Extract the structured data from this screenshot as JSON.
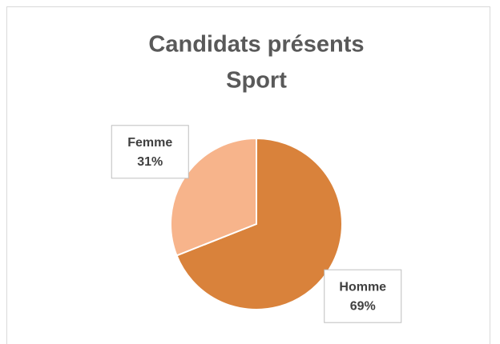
{
  "chart_data": {
    "type": "pie",
    "title": [
      "Candidats présents",
      "Sport"
    ],
    "categories": [
      "Homme",
      "Femme"
    ],
    "values": [
      69,
      31
    ],
    "value_labels": [
      "69%",
      "31%"
    ],
    "colors": [
      "#d9823b",
      "#f7b48b"
    ]
  }
}
